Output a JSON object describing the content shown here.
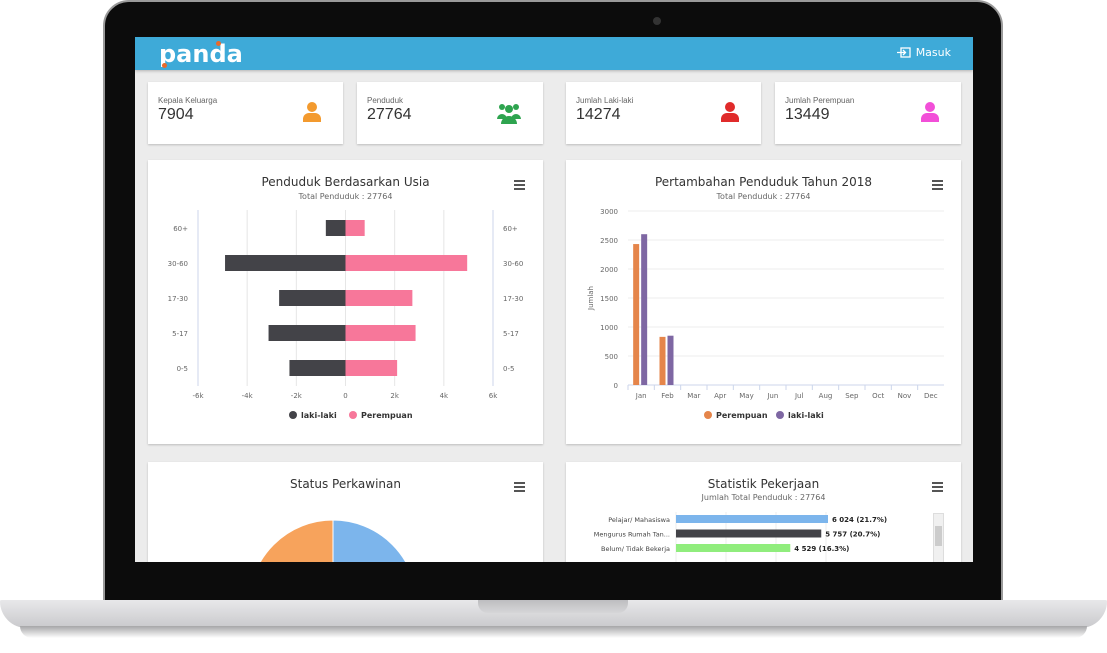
{
  "header": {
    "logo": "panda",
    "login_label": "Masuk",
    "color": "#3eaad8"
  },
  "stats": [
    {
      "label": "Kepala Keluarga",
      "value": "7904",
      "icon": "user-icon",
      "color": "#f39a2e"
    },
    {
      "label": "Penduduk",
      "value": "27764",
      "icon": "users-group-icon",
      "color": "#2ea44f"
    },
    {
      "label": "Jumlah Laki-laki",
      "value": "14274",
      "icon": "user-icon",
      "color": "#e02b2b"
    },
    {
      "label": "Jumlah Perempuan",
      "value": "13449",
      "icon": "user-icon",
      "color": "#f24fd8"
    }
  ],
  "chart_data": [
    {
      "type": "bar",
      "orientation": "horizontal",
      "title": "Penduduk Berdasarkan Usia",
      "subtitle": "Total Penduduk : 27764",
      "categories": [
        "60+",
        "30-60",
        "17-30",
        "5-17",
        "0-5"
      ],
      "xlim": [
        -6000,
        6000
      ],
      "xticks": [
        "-6k",
        "-4k",
        "-2k",
        "0",
        "2k",
        "4k",
        "6k"
      ],
      "series": [
        {
          "name": "laki-laki",
          "color": "#434348",
          "values": [
            -800,
            -4900,
            -2700,
            -3130,
            -2280
          ]
        },
        {
          "name": "Perempuan",
          "color": "#f7779a",
          "values": [
            780,
            4950,
            2720,
            2850,
            2100
          ]
        }
      ],
      "legend": "bottom",
      "grid": true
    },
    {
      "type": "bar",
      "title": "Pertambahan Penduduk Tahun 2018",
      "subtitle": "Total Penduduk : 27764",
      "ylabel": "Jumlah",
      "categories": [
        "Jan",
        "Feb",
        "Mar",
        "Apr",
        "May",
        "Jun",
        "Jul",
        "Aug",
        "Sep",
        "Oct",
        "Nov",
        "Dec"
      ],
      "ylim": [
        0,
        3000
      ],
      "yticks": [
        "0",
        "500",
        "1000",
        "1500",
        "2000",
        "2500",
        "3000"
      ],
      "series": [
        {
          "name": "Perempuan",
          "color": "#e5854a",
          "values": [
            2430,
            830,
            0,
            0,
            0,
            0,
            0,
            0,
            0,
            0,
            0,
            0
          ]
        },
        {
          "name": "laki-laki",
          "color": "#7e67a3",
          "values": [
            2600,
            850,
            0,
            0,
            0,
            0,
            0,
            0,
            0,
            0,
            0,
            0
          ]
        }
      ],
      "legend": "bottom",
      "grid": true
    },
    {
      "type": "pie",
      "title": "Status Perkawinan",
      "colors": [
        "#f7a35c",
        "#7cb5ec"
      ]
    },
    {
      "type": "bar",
      "orientation": "horizontal",
      "title": "Statistik Pekerjaan",
      "subtitle": "Jumlah Total Penduduk : 27764",
      "categories": [
        "Pelajar/ Mahasiswa",
        "Mengurus Rumah Tan...",
        "Belum/ Tidak Bekerja"
      ],
      "values": [
        6024,
        5757,
        4529
      ],
      "data_labels": [
        "6 024 (21.7%)",
        "5 757 (20.7%)",
        "4 529 (16.3%)"
      ],
      "colors": [
        "#7cb5ec",
        "#434348",
        "#90ed7d"
      ]
    }
  ]
}
